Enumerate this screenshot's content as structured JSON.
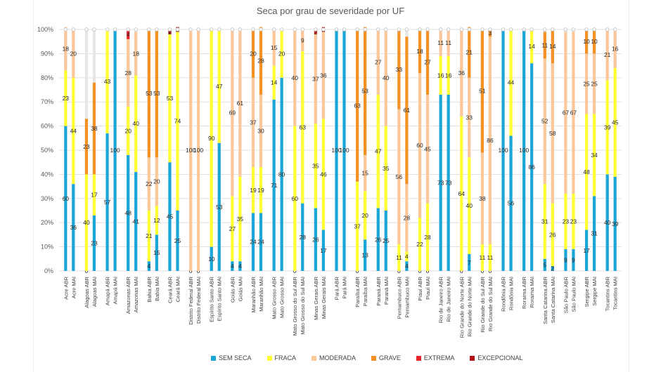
{
  "chart_data": {
    "type": "bar",
    "stacked": true,
    "title": "Seca por grau de severidade por UF",
    "yticks": [
      "0%",
      "10%",
      "20%",
      "30%",
      "40%",
      "50%",
      "60%",
      "70%",
      "80%",
      "90%",
      "100%"
    ],
    "ylim": [
      0,
      100
    ],
    "legend_position": "bottom",
    "categories": [
      "Acre ABR",
      "Acre MAI",
      "Alagoas ABR",
      "Alagoas MAI",
      "Amapá ABR",
      "Amapá MAI",
      "Amazonas ABR",
      "Amazonas MAI",
      "Bahia ABR",
      "Bahia MAI",
      "Ceará ABR",
      "Ceará MAI",
      "Distrito Federal ABR",
      "Distrito Federal MAI",
      "Espírito Santo ABR",
      "Espírito Santo MAI",
      "Goiás ABR",
      "Goiás MAI",
      "Maranhão ABR",
      "Maranhão MAI",
      "Mato Grosso ABR",
      "Mato Grosso MAI",
      "Mato Grosso do Sul ABR",
      "Mato Grosso do Sul MAI",
      "Minas Gerais ABR",
      "Minas Gerais MAI",
      "Pará ABR",
      "Pará MAI",
      "Paraíba ABR",
      "Paraíba MAI",
      "Paraná ABR",
      "Paraná MAI",
      "Pernambuco ABR",
      "Pernambuco MAI",
      "Piauí ABR",
      "Piauí MAI",
      "Rio de Janeiro ABR",
      "Rio de Janeiro MAI",
      "Rio Grande do Norte ABR",
      "Rio Grande do Norte MAI",
      "Rio Grande do Sul ABR",
      "Rio Grande do Sul MAI",
      "Rondônia ABR",
      "Rondônia MAI",
      "Roraima ABR",
      "Roraima MAI",
      "Santa Catarina ABR",
      "Santa Catarina MAI",
      "São Paulo ABR",
      "São Paulo MAI",
      "Sergipe ABR",
      "Sergipe MAI",
      "Tocantins ABR",
      "Tocantins MAI"
    ],
    "series": [
      {
        "name": "SEM SECA",
        "color": "#1aa6d8",
        "values": [
          60,
          36,
          0,
          23,
          57,
          100,
          48,
          41,
          4,
          15,
          45,
          25,
          0,
          0,
          10,
          53,
          4,
          4,
          24,
          24,
          71,
          80,
          0,
          28,
          26,
          17,
          100,
          100,
          0,
          13,
          26,
          25,
          0,
          4,
          0,
          0,
          73,
          73,
          0,
          7,
          0,
          0,
          100,
          56,
          100,
          86,
          5,
          2,
          9,
          9,
          17,
          31,
          40,
          39
        ]
      },
      {
        "name": "FRACA",
        "color": "#ffff33",
        "values": [
          23,
          44,
          40,
          17,
          43,
          0,
          20,
          40,
          21,
          12,
          53,
          74,
          0,
          0,
          90,
          47,
          27,
          35,
          19,
          19,
          14,
          20,
          60,
          63,
          35,
          46,
          0,
          0,
          37,
          20,
          47,
          35,
          11,
          4,
          22,
          28,
          16,
          16,
          64,
          40,
          11,
          11,
          0,
          44,
          0,
          14,
          31,
          26,
          23,
          23,
          48,
          34,
          39,
          45
        ]
      },
      {
        "name": "MODERADA",
        "color": "#fcc89a",
        "values": [
          18,
          20,
          0,
          0,
          0,
          0,
          28,
          18,
          22,
          20,
          0,
          0,
          100,
          100,
          0,
          0,
          69,
          61,
          37,
          30,
          15,
          0,
          40,
          9,
          37,
          36,
          0,
          0,
          0,
          15,
          27,
          40,
          56,
          28,
          60,
          45,
          11,
          11,
          36,
          33,
          38,
          86,
          0,
          0,
          0,
          0,
          52,
          58,
          67,
          67,
          25,
          25,
          21,
          16
        ]
      },
      {
        "name": "GRAVE",
        "color": "#f39124",
        "values": [
          0,
          0,
          23,
          38,
          0,
          0,
          0,
          0,
          53,
          53,
          0,
          0,
          0,
          0,
          0,
          0,
          0,
          0,
          20,
          28,
          0,
          0,
          0,
          0,
          0,
          0,
          0,
          0,
          63,
          53,
          0,
          0,
          33,
          61,
          18,
          27,
          0,
          0,
          0,
          21,
          51,
          3,
          0,
          0,
          0,
          0,
          11,
          14,
          0,
          0,
          10,
          10,
          0,
          0
        ]
      },
      {
        "name": "EXTREMA",
        "color": "#e8252b",
        "values": [
          0,
          0,
          0,
          0,
          0,
          0,
          4,
          0,
          0,
          0,
          0,
          0,
          0,
          0,
          0,
          0,
          0,
          0,
          0,
          0,
          0,
          0,
          0,
          0,
          2,
          2,
          0,
          0,
          0,
          0,
          0,
          0,
          0,
          0,
          0,
          0,
          0,
          0,
          0,
          0,
          0,
          0,
          0,
          0,
          0,
          0,
          0,
          0,
          0,
          0,
          0,
          0,
          0,
          0
        ]
      },
      {
        "name": "EXCEPCIONAL",
        "color": "#b31117",
        "values": [
          0,
          0,
          0,
          0,
          0,
          0,
          0,
          0,
          0,
          0,
          2,
          2,
          0,
          0,
          0,
          0,
          0,
          0,
          0,
          0,
          0,
          0,
          0,
          0,
          0,
          0,
          0,
          0,
          0,
          0,
          0,
          0,
          0,
          0,
          0,
          0,
          0,
          0,
          0,
          0,
          0,
          0,
          0,
          0,
          0,
          0,
          0,
          0,
          0,
          0,
          0,
          0,
          0,
          0
        ]
      }
    ],
    "data_labels": [
      [
        "60",
        "23",
        "18",
        "",
        "",
        ""
      ],
      [
        "36",
        "44",
        "20",
        "",
        "",
        ""
      ],
      [
        "0",
        "40",
        "",
        "23",
        "",
        ""
      ],
      [
        "23",
        "17",
        "",
        "38",
        "",
        ""
      ],
      [
        "57",
        "43",
        "",
        "",
        "",
        ""
      ],
      [
        "100",
        "",
        "",
        "",
        "",
        ""
      ],
      [
        "48",
        "20",
        "28",
        "",
        "4",
        ""
      ],
      [
        "41",
        "40",
        "18",
        "",
        "",
        ""
      ],
      [
        "4",
        "21",
        "22",
        "53",
        "",
        ""
      ],
      [
        "15",
        "12",
        "20",
        "53",
        "",
        ""
      ],
      [
        "45",
        "53",
        "",
        "",
        "",
        "2"
      ],
      [
        "25",
        "74",
        "",
        "",
        "",
        "2"
      ],
      [
        "0",
        "",
        "100",
        "",
        "",
        ""
      ],
      [
        "0",
        "",
        "100",
        "",
        "",
        ""
      ],
      [
        "10",
        "90",
        "",
        "",
        "",
        ""
      ],
      [
        "53",
        "47",
        "",
        "",
        "",
        ""
      ],
      [
        "4",
        "27",
        "69",
        "",
        "",
        ""
      ],
      [
        "4",
        "35",
        "61",
        "",
        "",
        ""
      ],
      [
        "24",
        "19",
        "37",
        "20",
        "",
        ""
      ],
      [
        "24",
        "19",
        "30",
        "28",
        "",
        ""
      ],
      [
        "71",
        "14",
        "15",
        "",
        "",
        ""
      ],
      [
        "80",
        "20",
        "",
        "",
        "",
        ""
      ],
      [
        "0",
        "60",
        "40",
        "",
        "",
        ""
      ],
      [
        "28",
        "63",
        "9",
        "",
        "",
        ""
      ],
      [
        "26",
        "35",
        "37",
        "",
        "2",
        ""
      ],
      [
        "17",
        "46",
        "36",
        "",
        "2",
        ""
      ],
      [
        "100",
        "",
        "",
        "",
        "",
        ""
      ],
      [
        "100",
        "",
        "",
        "",
        "",
        ""
      ],
      [
        "0",
        "37",
        "",
        "63",
        "",
        ""
      ],
      [
        "13",
        "20",
        "15",
        "53",
        "",
        ""
      ],
      [
        "26",
        "47",
        "27",
        "",
        "",
        ""
      ],
      [
        "25",
        "35",
        "40",
        "",
        "",
        ""
      ],
      [
        "0",
        "11",
        "56",
        "33",
        "",
        ""
      ],
      [
        "4",
        "4",
        "28",
        "61",
        "",
        ""
      ],
      [
        "0",
        "22",
        "60",
        "18",
        "",
        ""
      ],
      [
        "0",
        "28",
        "45",
        "27",
        "",
        ""
      ],
      [
        "73",
        "16",
        "11",
        "",
        "",
        ""
      ],
      [
        "73",
        "16",
        "11",
        "",
        "",
        ""
      ],
      [
        "0",
        "64",
        "36",
        "",
        "",
        ""
      ],
      [
        "7",
        "40",
        "33",
        "21",
        "",
        ""
      ],
      [
        "0",
        "11",
        "38",
        "51",
        "",
        ""
      ],
      [
        "0",
        "11",
        "86",
        "3",
        "",
        ""
      ],
      [
        "100",
        "",
        "",
        "",
        "",
        ""
      ],
      [
        "56",
        "44",
        "",
        "",
        "",
        ""
      ],
      [
        "100",
        "",
        "",
        "",
        "",
        ""
      ],
      [
        "86",
        "14",
        "",
        "",
        "",
        ""
      ],
      [
        "5",
        "31",
        "52",
        "11",
        "",
        ""
      ],
      [
        "2",
        "26",
        "58",
        "14",
        "",
        ""
      ],
      [
        "9",
        "23",
        "67",
        "",
        "",
        ""
      ],
      [
        "9",
        "23",
        "67",
        "",
        "",
        ""
      ],
      [
        "17",
        "48",
        "25",
        "10",
        "",
        ""
      ],
      [
        "31",
        "34",
        "25",
        "10",
        "",
        ""
      ],
      [
        "40",
        "39",
        "21",
        "",
        "",
        ""
      ],
      [
        "39",
        "45",
        "16",
        "",
        "",
        ""
      ]
    ]
  }
}
